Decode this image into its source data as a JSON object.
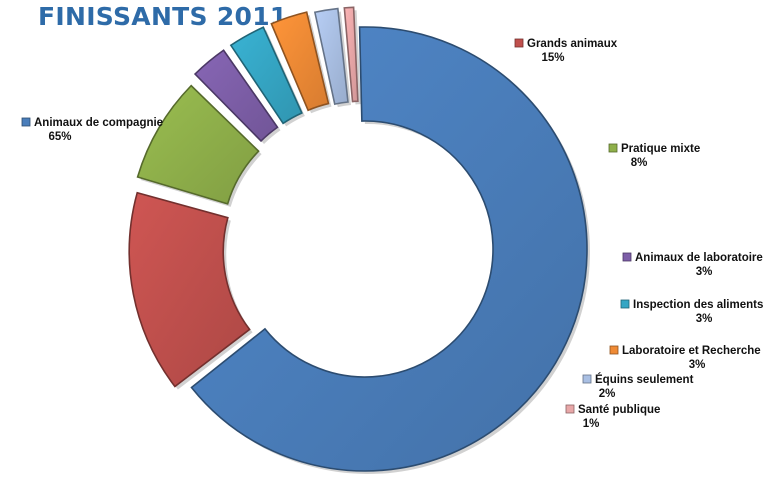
{
  "chart_data": {
    "type": "pie",
    "variant": "exploded-donut",
    "title": "FINISSANTS 2011",
    "categories": [
      "Animaux de compagnie",
      "Grands animaux",
      "Pratique mixte",
      "Animaux de laboratoire",
      "Inspection des aliments",
      "Laboratoire et Recherche",
      "Équins seulement",
      "Santé publique"
    ],
    "values": [
      65,
      15,
      8,
      3,
      3,
      3,
      2,
      1
    ],
    "value_labels": [
      "65%",
      "15%",
      "8%",
      "3%",
      "3%",
      "3%",
      "2%",
      "1%"
    ],
    "colors": [
      "#4a7ebb",
      "#c0504d",
      "#8fb04a",
      "#7d5ea8",
      "#35a6c4",
      "#ef8a35",
      "#a9bfe3",
      "#e8a7a8"
    ],
    "legend": "labels-beside-slices"
  }
}
